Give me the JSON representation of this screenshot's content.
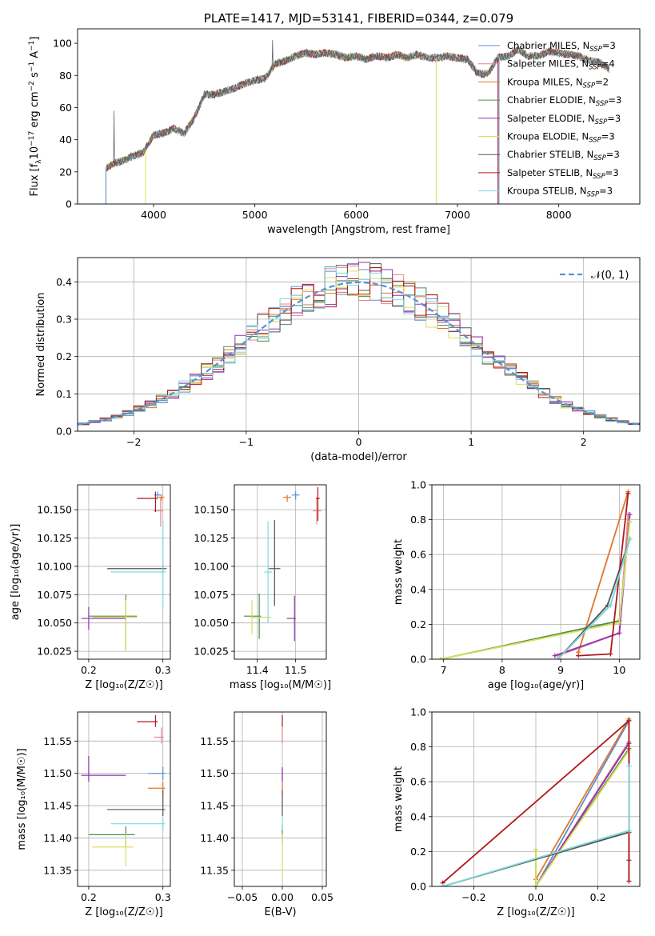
{
  "figure_title": "PLATE=1417, MJD=53141, FIBERID=0344, z=0.079",
  "colors": {
    "Chabrier MILES": "#5b8fd6",
    "Salpeter MILES": "#e8868a",
    "Kroupa MILES": "#e0762a",
    "Chabrier ELODIE": "#4f8a4f",
    "Salpeter ELODIE": "#9030b0",
    "Kroupa ELODIE": "#d9e05a",
    "Chabrier STELIB": "#555555",
    "Salpeter STELIB": "#b01818",
    "Kroupa STELIB": "#7fd8de",
    "normal_curve": "#5b8fd6",
    "grid": "#b0b0b0"
  },
  "chart_data": [
    {
      "id": "spectrum",
      "type": "line",
      "title": "PLATE=1417, MJD=53141, FIBERID=0344, z=0.079",
      "xlabel": "wavelength [Angstrom, rest frame]",
      "ylabel": "Flux [f_λ 10^-17 erg cm^-2 s^-1 A^-1]",
      "xlim": [
        3250,
        8800
      ],
      "ylim": [
        0,
        109
      ],
      "xticks": [
        4000,
        5000,
        6000,
        7000,
        8000
      ],
      "yticks": [
        0,
        20,
        40,
        60,
        80,
        100
      ],
      "grid": false,
      "legend_position": "right",
      "legend": [
        {
          "model": "Chabrier MILES",
          "nssp": "3"
        },
        {
          "model": "Salpeter MILES",
          "nssp": "4"
        },
        {
          "model": "Kroupa MILES",
          "nssp": "2"
        },
        {
          "model": "Chabrier ELODIE",
          "nssp": "3"
        },
        {
          "model": "Salpeter ELODIE",
          "nssp": "3"
        },
        {
          "model": "Kroupa ELODIE",
          "nssp": "3"
        },
        {
          "model": "Chabrier STELIB",
          "nssp": "3"
        },
        {
          "model": "Salpeter STELIB",
          "nssp": "3"
        },
        {
          "model": "Kroupa STELIB",
          "nssp": "3"
        }
      ],
      "data_curve": {
        "x": [
          3500,
          3600,
          3700,
          3800,
          3900,
          4000,
          4100,
          4200,
          4300,
          4400,
          4500,
          4600,
          4700,
          4800,
          4900,
          5000,
          5100,
          5200,
          5300,
          5400,
          5500,
          5600,
          5700,
          5800,
          5900,
          6000,
          6100,
          6200,
          6300,
          6400,
          6500,
          6600,
          6700,
          6800,
          6900,
          7000,
          7100,
          7200,
          7300,
          7400,
          7500,
          7600,
          7700,
          7800,
          7900,
          8000,
          8100,
          8200,
          8300,
          8400,
          8500
        ],
        "y": [
          21,
          25,
          27,
          30,
          32,
          43,
          44,
          47,
          44,
          53,
          68,
          68,
          70,
          72,
          75,
          77,
          78,
          87,
          89,
          92,
          94,
          93,
          94,
          93,
          91,
          92,
          90,
          92,
          91,
          93,
          91,
          93,
          91,
          91,
          92,
          91,
          90,
          81,
          81,
          91,
          92,
          96,
          92,
          92,
          95,
          94,
          93,
          92,
          89,
          88,
          84
        ]
      },
      "model_cutoffs": [
        {
          "model": "Salpeter STELIB",
          "x_start": 3530,
          "x_end": 7400
        },
        {
          "model": "Kroupa ELODIE",
          "x_start": 3920,
          "x_end": 6790
        },
        {
          "model": "Chabrier MILES",
          "x_start": 3530,
          "x_end": 7410
        }
      ]
    },
    {
      "id": "residuals",
      "type": "histogram",
      "xlabel": "(data-model)/error",
      "ylabel": "Normed distribution",
      "xlim": [
        -2.5,
        2.5
      ],
      "ylim": [
        0,
        0.465
      ],
      "xticks": [
        -2,
        -1,
        0,
        1,
        2
      ],
      "yticks": [
        0.0,
        0.1,
        0.2,
        0.3,
        0.4
      ],
      "grid": true,
      "legend_position": "top-right",
      "legend_label": "𝒩(0, 1)",
      "bin_width": 0.1,
      "reference_curve": "normal(0,1)"
    },
    {
      "id": "age-vs-Z",
      "type": "errorbar",
      "xlabel": "Z [log₁₀(Z/Z☉)]",
      "ylabel": "age  [log₁₀(age/yr)]",
      "xlim": [
        0.185,
        0.31
      ],
      "ylim": [
        10.018,
        10.172
      ],
      "xticks": [
        0.2,
        0.3
      ],
      "yticks": [
        10.025,
        10.05,
        10.075,
        10.1,
        10.125,
        10.15
      ],
      "grid": true,
      "points": [
        {
          "model": "Chabrier MILES",
          "x": 0.293,
          "xerr": [
            0.005,
            0.005
          ],
          "y": 10.163,
          "yerr": [
            0.003,
            0.003
          ]
        },
        {
          "model": "Salpeter MILES",
          "x": 0.297,
          "xerr": [
            0.01,
            0.003
          ],
          "y": 10.149,
          "yerr": [
            0.014,
            0.012
          ]
        },
        {
          "model": "Kroupa MILES",
          "x": 0.298,
          "xerr": [
            0.004,
            0.004
          ],
          "y": 10.161,
          "yerr": [
            0.003,
            0.002
          ]
        },
        {
          "model": "Chabrier ELODIE",
          "x": 0.25,
          "xerr": [
            0.05,
            0.015
          ],
          "y": 10.056,
          "yerr": [
            0.03,
            0.019
          ]
        },
        {
          "model": "Salpeter ELODIE",
          "x": 0.2,
          "xerr": [
            0.01,
            0.05
          ],
          "y": 10.054,
          "yerr": [
            0.01,
            0.01
          ]
        },
        {
          "model": "Kroupa ELODIE",
          "x": 0.25,
          "xerr": [
            0.045,
            0.015
          ],
          "y": 10.055,
          "yerr": [
            0.03,
            0.015
          ]
        },
        {
          "model": "Chabrier STELIB",
          "x": 0.3,
          "xerr": [
            0.075,
            0.005
          ],
          "y": 10.098,
          "yerr": [
            0.003,
            0.003
          ]
        },
        {
          "model": "Salpeter STELIB",
          "x": 0.29,
          "xerr": [
            0.025,
            0.003
          ],
          "y": 10.16,
          "yerr": [
            0.012,
            0.006
          ]
        },
        {
          "model": "Kroupa STELIB",
          "x": 0.3,
          "xerr": [
            0.07,
            0.004
          ],
          "y": 10.095,
          "yerr": [
            0.033,
            0.045
          ]
        }
      ]
    },
    {
      "id": "age-vs-mass",
      "type": "errorbar",
      "xlabel": "mass [log₁₀(M/M☉)]",
      "ylabel": "",
      "xlim": [
        11.34,
        11.58
      ],
      "ylim": [
        10.018,
        10.172
      ],
      "xticks": [
        11.4,
        11.5
      ],
      "yticks": [
        10.025,
        10.05,
        10.075,
        10.1,
        10.125,
        10.15
      ],
      "grid": true,
      "points": [
        {
          "model": "Chabrier MILES",
          "x": 11.5,
          "xerr": [
            0.01,
            0.01
          ],
          "y": 10.163,
          "yerr": [
            0.004,
            0.003
          ]
        },
        {
          "model": "Salpeter MILES",
          "x": 11.555,
          "xerr": [
            0.01,
            0.012
          ],
          "y": 10.149,
          "yerr": [
            0.012,
            0.012
          ]
        },
        {
          "model": "Kroupa MILES",
          "x": 11.478,
          "xerr": [
            0.01,
            0.01
          ],
          "y": 10.161,
          "yerr": [
            0.004,
            0.002
          ]
        },
        {
          "model": "Chabrier ELODIE",
          "x": 11.405,
          "xerr": [
            0.04,
            0.005
          ],
          "y": 10.056,
          "yerr": [
            0.02,
            0.02
          ]
        },
        {
          "model": "Salpeter ELODIE",
          "x": 11.497,
          "xerr": [
            0.02,
            0.003
          ],
          "y": 10.054,
          "yerr": [
            0.02,
            0.02
          ]
        },
        {
          "model": "Kroupa ELODIE",
          "x": 11.386,
          "xerr": [
            0.005,
            0.05
          ],
          "y": 10.055,
          "yerr": [
            0.015,
            0.015
          ]
        },
        {
          "model": "Chabrier STELIB",
          "x": 11.445,
          "xerr": [
            0.015,
            0.015
          ],
          "y": 10.098,
          "yerr": [
            0.033,
            0.043
          ]
        },
        {
          "model": "Salpeter STELIB",
          "x": 11.558,
          "xerr": [
            0.005,
            0.005
          ],
          "y": 10.16,
          "yerr": [
            0.02,
            0.01
          ]
        },
        {
          "model": "Kroupa STELIB",
          "x": 11.428,
          "xerr": [
            0.01,
            0.01
          ],
          "y": 10.095,
          "yerr": [
            0.045,
            0.045
          ]
        }
      ]
    },
    {
      "id": "weight-vs-age",
      "type": "line",
      "xlabel": "age  [log₁₀(age/yr)]",
      "ylabel": "mass weight",
      "xlim": [
        6.8,
        10.35
      ],
      "ylim": [
        0,
        1.0
      ],
      "xticks": [
        7,
        8,
        9,
        10
      ],
      "yticks": [
        0.0,
        0.2,
        0.4,
        0.6,
        0.8,
        1.0
      ],
      "grid": true,
      "series": [
        {
          "model": "Chabrier MILES",
          "x": [
            8.95,
            9.85,
            10.18
          ],
          "y": [
            0.0,
            0.31,
            0.69
          ]
        },
        {
          "model": "Salpeter MILES",
          "x": [
            8.95,
            10.0,
            10.15
          ],
          "y": [
            0.02,
            0.15,
            0.83
          ]
        },
        {
          "model": "Kroupa MILES",
          "x": [
            9.3,
            10.15
          ],
          "y": [
            0.04,
            0.96
          ]
        },
        {
          "model": "Chabrier ELODIE",
          "x": [
            6.95,
            10.0,
            10.18
          ],
          "y": [
            0.0,
            0.22,
            0.79
          ]
        },
        {
          "model": "Salpeter ELODIE",
          "x": [
            8.9,
            10.0,
            10.18
          ],
          "y": [
            0.02,
            0.15,
            0.83
          ]
        },
        {
          "model": "Kroupa ELODIE",
          "x": [
            6.95,
            10.0,
            10.18
          ],
          "y": [
            0.0,
            0.21,
            0.79
          ]
        },
        {
          "model": "Chabrier STELIB",
          "x": [
            8.95,
            9.8,
            10.18
          ],
          "y": [
            0.0,
            0.31,
            0.69
          ]
        },
        {
          "model": "Salpeter STELIB",
          "x": [
            9.3,
            9.85,
            10.15
          ],
          "y": [
            0.02,
            0.03,
            0.95
          ]
        },
        {
          "model": "Kroupa STELIB",
          "x": [
            8.95,
            9.85,
            10.18
          ],
          "y": [
            0.0,
            0.31,
            0.69
          ]
        }
      ]
    },
    {
      "id": "mass-vs-Z",
      "type": "errorbar",
      "xlabel": "Z [log₁₀(Z/Z☉)]",
      "ylabel": "mass [log₁₀(M/M☉)]",
      "xlim": [
        0.185,
        0.31
      ],
      "ylim": [
        11.325,
        11.595
      ],
      "xticks": [
        0.2,
        0.3
      ],
      "yticks": [
        11.35,
        11.4,
        11.45,
        11.5,
        11.55
      ],
      "grid": true,
      "points": [
        {
          "model": "Chabrier MILES",
          "x": 0.3,
          "xerr": [
            0.02,
            0.003
          ],
          "y": 11.5,
          "yerr": [
            0.01,
            0.01
          ]
        },
        {
          "model": "Salpeter MILES",
          "x": 0.298,
          "xerr": [
            0.01,
            0.003
          ],
          "y": 11.556,
          "yerr": [
            0.01,
            0.015
          ]
        },
        {
          "model": "Kroupa MILES",
          "x": 0.3,
          "xerr": [
            0.02,
            0.003
          ],
          "y": 11.477,
          "yerr": [
            0.01,
            0.01
          ]
        },
        {
          "model": "Chabrier ELODIE",
          "x": 0.25,
          "xerr": [
            0.05,
            0.012
          ],
          "y": 11.405,
          "yerr": [
            0.02,
            0.013
          ]
        },
        {
          "model": "Salpeter ELODIE",
          "x": 0.2,
          "xerr": [
            0.01,
            0.05
          ],
          "y": 11.497,
          "yerr": [
            0.01,
            0.03
          ]
        },
        {
          "model": "Kroupa ELODIE",
          "x": 0.25,
          "xerr": [
            0.045,
            0.01
          ],
          "y": 11.386,
          "yerr": [
            0.03,
            0.02
          ]
        },
        {
          "model": "Chabrier STELIB",
          "x": 0.3,
          "xerr": [
            0.075,
            0.003
          ],
          "y": 11.444,
          "yerr": [
            0.01,
            0.03
          ]
        },
        {
          "model": "Salpeter STELIB",
          "x": 0.29,
          "xerr": [
            0.025,
            0.003
          ],
          "y": 11.58,
          "yerr": [
            0.008,
            0.01
          ]
        },
        {
          "model": "Kroupa STELIB",
          "x": 0.3,
          "xerr": [
            0.07,
            0.003
          ],
          "y": 11.422,
          "yerr": [
            0.01,
            0.01
          ]
        }
      ]
    },
    {
      "id": "mass-vs-ebv",
      "type": "errorbar",
      "xlabel": "E(B-V)",
      "ylabel": "",
      "xlim": [
        -0.06,
        0.055
      ],
      "ylim": [
        11.325,
        11.595
      ],
      "xticks": [
        -0.05,
        0.0,
        0.05
      ],
      "yticks": [
        11.35,
        11.4,
        11.45,
        11.5,
        11.55
      ],
      "grid": true,
      "points": [
        {
          "model": "Chabrier MILES",
          "x": 0.0,
          "xerr": [
            0,
            0
          ],
          "y": 11.5,
          "yerr": [
            0.01,
            0.01
          ]
        },
        {
          "model": "Salpeter MILES",
          "x": 0.0,
          "xerr": [
            0,
            0
          ],
          "y": 11.556,
          "yerr": [
            0.01,
            0.015
          ]
        },
        {
          "model": "Kroupa MILES",
          "x": 0.0,
          "xerr": [
            0,
            0
          ],
          "y": 11.477,
          "yerr": [
            0.01,
            0.01
          ]
        },
        {
          "model": "Chabrier ELODIE",
          "x": 0.0,
          "xerr": [
            0,
            0
          ],
          "y": 11.405,
          "yerr": [
            0.015,
            0.015
          ]
        },
        {
          "model": "Salpeter ELODIE",
          "x": 0.0,
          "xerr": [
            0,
            0
          ],
          "y": 11.497,
          "yerr": [
            0.01,
            0.012
          ]
        },
        {
          "model": "Kroupa ELODIE",
          "x": 0.0,
          "xerr": [
            0,
            0
          ],
          "y": 11.386,
          "yerr": [
            0.045,
            0.02
          ]
        },
        {
          "model": "Chabrier STELIB",
          "x": 0.0,
          "xerr": [
            0,
            0
          ],
          "y": 11.444,
          "yerr": [
            0.01,
            0.03
          ]
        },
        {
          "model": "Salpeter STELIB",
          "x": 0.0,
          "xerr": [
            0,
            0
          ],
          "y": 11.58,
          "yerr": [
            0.008,
            0.01
          ]
        },
        {
          "model": "Kroupa STELIB",
          "x": 0.0,
          "xerr": [
            0,
            0
          ],
          "y": 11.422,
          "yerr": [
            0.01,
            0.01
          ]
        }
      ]
    },
    {
      "id": "weight-vs-Z",
      "type": "line",
      "xlabel": "Z [log₁₀(Z/Z☉)]",
      "ylabel": "mass weight",
      "xlim": [
        -0.335,
        0.335
      ],
      "ylim": [
        0,
        1.0
      ],
      "xticks": [
        -0.2,
        0.0,
        0.2
      ],
      "yticks": [
        0.0,
        0.2,
        0.4,
        0.6,
        0.8,
        1.0
      ],
      "grid": true,
      "series": [
        {
          "model": "Chabrier MILES",
          "x": [
            0.0,
            0.3,
            0.3
          ],
          "y": [
            0.0,
            0.95,
            0.31
          ]
        },
        {
          "model": "Salpeter MILES",
          "x": [
            0.0,
            0.3,
            0.3,
            0.3
          ],
          "y": [
            0.0,
            0.83,
            0.15,
            0.03
          ]
        },
        {
          "model": "Kroupa MILES",
          "x": [
            0.0,
            0.3
          ],
          "y": [
            0.04,
            0.96
          ]
        },
        {
          "model": "Chabrier ELODIE",
          "x": [
            0.0,
            0.0,
            0.3
          ],
          "y": [
            0.21,
            0.0,
            0.79
          ]
        },
        {
          "model": "Salpeter ELODIE",
          "x": [
            0.0,
            0.3,
            0.3
          ],
          "y": [
            0.0,
            0.82,
            0.15
          ]
        },
        {
          "model": "Kroupa ELODIE",
          "x": [
            0.0,
            0.0,
            0.3
          ],
          "y": [
            0.21,
            0.0,
            0.78
          ]
        },
        {
          "model": "Chabrier STELIB",
          "x": [
            -0.3,
            0.3,
            0.3
          ],
          "y": [
            0.0,
            0.31,
            0.69
          ]
        },
        {
          "model": "Salpeter STELIB",
          "x": [
            -0.3,
            0.3,
            0.3
          ],
          "y": [
            0.02,
            0.95,
            0.03
          ]
        },
        {
          "model": "Kroupa STELIB",
          "x": [
            -0.3,
            0.3,
            0.3
          ],
          "y": [
            0.0,
            0.32,
            0.69
          ]
        }
      ]
    }
  ]
}
